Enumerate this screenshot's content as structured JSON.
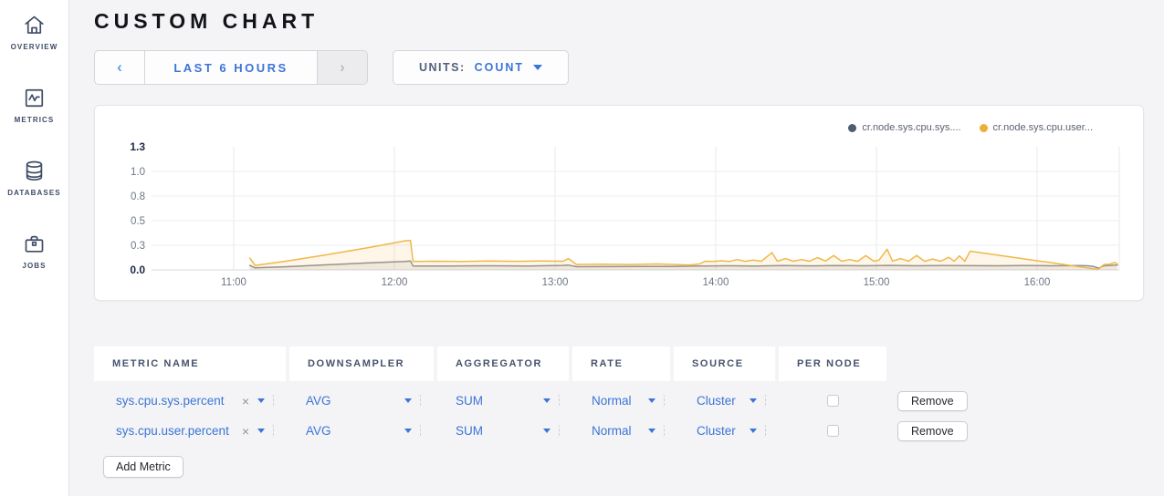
{
  "sidebar": {
    "items": [
      {
        "label": "OVERVIEW",
        "icon": "home-icon"
      },
      {
        "label": "METRICS",
        "icon": "metrics-icon"
      },
      {
        "label": "DATABASES",
        "icon": "database-icon"
      },
      {
        "label": "JOBS",
        "icon": "briefcase-icon"
      }
    ]
  },
  "header": {
    "title": "CUSTOM CHART"
  },
  "toolbar": {
    "time_picker": {
      "prev": "‹",
      "label": "LAST 6 HOURS",
      "next": "›"
    },
    "units": {
      "label": "UNITS:",
      "value": "COUNT"
    }
  },
  "chart_data": {
    "type": "line",
    "title": "",
    "x_axis": {
      "unit": "time-of-day",
      "tick_minutes": [
        0,
        60,
        120,
        180,
        240,
        300
      ],
      "tick_labels": [
        "11:00",
        "12:00",
        "13:00",
        "14:00",
        "15:00",
        "16:00"
      ],
      "range_minutes": [
        -31,
        331
      ],
      "note": "minutes measured from 11:00"
    },
    "y_axis": {
      "min": 0,
      "max": 1.25,
      "ticks": [
        {
          "v": 0,
          "label": "0.0",
          "bold": true
        },
        {
          "v": 0.25,
          "label": "0.3",
          "bold": false
        },
        {
          "v": 0.5,
          "label": "0.5",
          "bold": false
        },
        {
          "v": 0.75,
          "label": "0.8",
          "bold": false
        },
        {
          "v": 1.0,
          "label": "1.0",
          "bold": false
        },
        {
          "v": 1.25,
          "label": "1.3",
          "bold": true
        }
      ]
    },
    "grid": true,
    "legend_position": "top-right",
    "series": [
      {
        "name": "cr.node.sys.cpu.sys.percent",
        "legend_label": "cr.node.sys.cpu.sys....",
        "color": "#8b8f97",
        "dot_color": "#505c74",
        "fill": "rgba(139,143,151,0.14)",
        "points": [
          [
            6,
            0.045
          ],
          [
            8,
            0.02
          ],
          [
            20,
            0.032
          ],
          [
            35,
            0.052
          ],
          [
            50,
            0.07
          ],
          [
            64,
            0.086
          ],
          [
            66,
            0.09
          ],
          [
            67,
            0.04
          ],
          [
            80,
            0.04
          ],
          [
            95,
            0.042
          ],
          [
            110,
            0.04
          ],
          [
            123,
            0.045
          ],
          [
            125,
            0.048
          ],
          [
            128,
            0.032
          ],
          [
            140,
            0.033
          ],
          [
            152,
            0.035
          ],
          [
            164,
            0.034
          ],
          [
            174,
            0.04
          ],
          [
            185,
            0.042
          ],
          [
            195,
            0.04
          ],
          [
            205,
            0.044
          ],
          [
            215,
            0.041
          ],
          [
            225,
            0.044
          ],
          [
            235,
            0.042
          ],
          [
            245,
            0.045
          ],
          [
            255,
            0.042
          ],
          [
            265,
            0.044
          ],
          [
            275,
            0.043
          ],
          [
            285,
            0.042
          ],
          [
            295,
            0.044
          ],
          [
            305,
            0.042
          ],
          [
            315,
            0.044
          ],
          [
            319,
            0.042
          ],
          [
            321,
            0.035
          ],
          [
            323,
            0.018
          ],
          [
            325,
            0.042
          ],
          [
            327,
            0.045
          ],
          [
            330,
            0.05
          ]
        ]
      },
      {
        "name": "cr.node.sys.cpu.user.percent",
        "legend_label": "cr.node.sys.cpu.user...",
        "color": "#f0b84a",
        "dot_color": "#efad33",
        "fill": "rgba(240,184,74,0.12)",
        "points": [
          [
            6,
            0.12
          ],
          [
            8,
            0.045
          ],
          [
            20,
            0.09
          ],
          [
            35,
            0.155
          ],
          [
            50,
            0.225
          ],
          [
            64,
            0.295
          ],
          [
            66,
            0.3
          ],
          [
            67,
            0.085
          ],
          [
            75,
            0.088
          ],
          [
            85,
            0.085
          ],
          [
            95,
            0.09
          ],
          [
            105,
            0.087
          ],
          [
            115,
            0.09
          ],
          [
            123,
            0.088
          ],
          [
            125,
            0.115
          ],
          [
            128,
            0.055
          ],
          [
            138,
            0.058
          ],
          [
            148,
            0.055
          ],
          [
            158,
            0.06
          ],
          [
            165,
            0.055
          ],
          [
            170,
            0.05
          ],
          [
            174,
            0.06
          ],
          [
            176,
            0.088
          ],
          [
            179,
            0.085
          ],
          [
            182,
            0.093
          ],
          [
            185,
            0.085
          ],
          [
            188,
            0.105
          ],
          [
            191,
            0.087
          ],
          [
            194,
            0.1
          ],
          [
            197,
            0.087
          ],
          [
            201,
            0.175
          ],
          [
            203,
            0.088
          ],
          [
            206,
            0.115
          ],
          [
            209,
            0.088
          ],
          [
            212,
            0.105
          ],
          [
            215,
            0.088
          ],
          [
            218,
            0.125
          ],
          [
            221,
            0.09
          ],
          [
            224,
            0.145
          ],
          [
            227,
            0.088
          ],
          [
            230,
            0.105
          ],
          [
            233,
            0.087
          ],
          [
            236,
            0.145
          ],
          [
            239,
            0.088
          ],
          [
            241,
            0.1
          ],
          [
            244,
            0.21
          ],
          [
            246,
            0.09
          ],
          [
            249,
            0.115
          ],
          [
            252,
            0.088
          ],
          [
            255,
            0.145
          ],
          [
            258,
            0.088
          ],
          [
            261,
            0.11
          ],
          [
            264,
            0.088
          ],
          [
            267,
            0.128
          ],
          [
            269,
            0.088
          ],
          [
            271,
            0.142
          ],
          [
            273,
            0.088
          ],
          [
            275,
            0.19
          ],
          [
            321,
            0.012
          ],
          [
            323,
            0.008
          ],
          [
            325,
            0.055
          ],
          [
            327,
            0.058
          ],
          [
            329,
            0.075
          ],
          [
            330,
            0.06
          ]
        ]
      }
    ]
  },
  "table": {
    "columns": [
      "METRIC NAME",
      "DOWNSAMPLER",
      "AGGREGATOR",
      "RATE",
      "SOURCE",
      "PER NODE"
    ],
    "rows": [
      {
        "metric": "sys.cpu.sys.percent",
        "clear": "×",
        "downsampler": "AVG",
        "aggregator": "SUM",
        "rate": "Normal",
        "source": "Cluster",
        "per_node": false,
        "remove": "Remove"
      },
      {
        "metric": "sys.cpu.user.percent",
        "clear": "×",
        "downsampler": "AVG",
        "aggregator": "SUM",
        "rate": "Normal",
        "source": "Cluster",
        "per_node": false,
        "remove": "Remove"
      }
    ],
    "add_button": "Add Metric"
  }
}
